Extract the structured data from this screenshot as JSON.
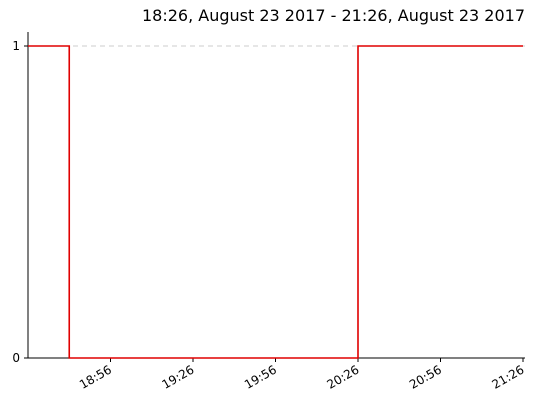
{
  "chart_data": {
    "type": "line",
    "title": "18:26, August 23 2017 - 21:26, August 23 2017",
    "xlabel": "",
    "ylabel": "",
    "x_ticks": [
      "18:56",
      "19:26",
      "19:56",
      "20:26",
      "20:56",
      "21:26"
    ],
    "y_ticks": [
      "0",
      "1"
    ],
    "ylim": [
      0,
      1
    ],
    "xlim": [
      "18:26",
      "21:26"
    ],
    "step": true,
    "grid": "dashed horizontal line at y=1",
    "series": [
      {
        "color": "#e00000",
        "x": [
          "18:26",
          "18:41",
          "20:26",
          "21:26"
        ],
        "values": [
          1,
          0,
          1,
          1
        ]
      }
    ]
  }
}
